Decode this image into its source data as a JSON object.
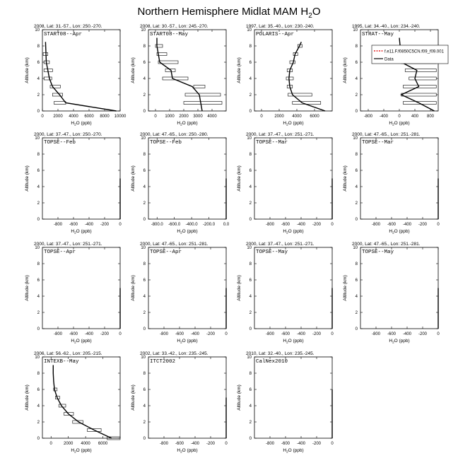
{
  "page": {
    "title_main": "Northern Hemisphere Midlat MAM H",
    "title_sub": "2",
    "title_end": "O"
  },
  "axis_text": {
    "ylabel": "Altitude (km)",
    "xlabel_main": "H",
    "xlabel_sub": "2",
    "xlabel_end": "O (ppb)"
  },
  "chart_data": [
    {
      "type": "line",
      "header": "2008, Lat: 31.-57., Lon: 250.-270.",
      "campaign": "START08--Apr",
      "xlim": [
        0,
        10000
      ],
      "ylim": [
        0,
        10
      ],
      "xticks": [
        "0",
        "2000",
        "4000",
        "6000",
        "8000",
        "10000"
      ],
      "yticks": [
        "0",
        "2",
        "4",
        "6",
        "8",
        "10"
      ],
      "profile": {
        "x": [
          9500,
          3000,
          2200,
          1300,
          900,
          500,
          400
        ],
        "y": [
          0,
          1,
          2,
          3,
          4,
          6,
          8.5
        ]
      },
      "boxes": [
        {
          "y": 1,
          "x0": 1500,
          "x1": 3000
        },
        {
          "y": 2,
          "x0": 1300,
          "x1": 2600
        },
        {
          "y": 3,
          "x0": 1000,
          "x1": 2300
        },
        {
          "y": 4,
          "x0": 200,
          "x1": 1200
        },
        {
          "y": 5,
          "x0": 200,
          "x1": 1300
        },
        {
          "y": 6,
          "x0": 200,
          "x1": 900
        },
        {
          "y": 7,
          "x0": 100,
          "x1": 700
        }
      ]
    },
    {
      "type": "line",
      "header": "2008, Lat: 30.-57., Lon: 245.-270.",
      "campaign": "START08--May",
      "xlim": [
        -500,
        5000
      ],
      "ylim": [
        0,
        10
      ],
      "xticks": [
        "0",
        "1000",
        "2000",
        "3000",
        "4000"
      ],
      "yticks": [
        "0",
        "2",
        "4",
        "6",
        "8",
        "10"
      ],
      "profile": {
        "x": [
          3300,
          3200,
          3100,
          2600,
          1200,
          1100,
          300,
          100,
          100
        ],
        "y": [
          0,
          1,
          2,
          3,
          4,
          5,
          6,
          8,
          9
        ]
      },
      "boxes": [
        {
          "y": 1,
          "x0": 2000,
          "x1": 4700
        },
        {
          "y": 2,
          "x0": 2100,
          "x1": 4600
        },
        {
          "y": 3,
          "x0": 2700,
          "x1": 3500
        },
        {
          "y": 4,
          "x0": 500,
          "x1": 2300
        },
        {
          "y": 5,
          "x0": 700,
          "x1": 1400
        },
        {
          "y": 6,
          "x0": 200,
          "x1": 1600
        },
        {
          "y": 7,
          "x0": 100,
          "x1": 800
        },
        {
          "y": 8,
          "x0": 0,
          "x1": 500
        }
      ]
    },
    {
      "type": "line",
      "header": "1997, Lat: 35.-40., Lon: 230.-240.",
      "campaign": "POLARIS--Apr",
      "xlim": [
        -800,
        8000
      ],
      "ylim": [
        0,
        10
      ],
      "xticks": [
        "0",
        "2000",
        "4000",
        "6000"
      ],
      "yticks": [
        "0",
        "2",
        "4",
        "6",
        "8",
        "10"
      ],
      "profile": {
        "x": [
          7200,
          4600,
          3500,
          3200,
          3100,
          3200,
          3600,
          3800,
          4300,
          4500
        ],
        "y": [
          0,
          1,
          2,
          3,
          4,
          5,
          6,
          7,
          8,
          8.5
        ]
      },
      "boxes": [
        {
          "y": 1,
          "x0": 3500,
          "x1": 6700
        },
        {
          "y": 2,
          "x0": 3000,
          "x1": 5700
        },
        {
          "y": 3,
          "x0": 2900,
          "x1": 3500
        },
        {
          "y": 4,
          "x0": 2800,
          "x1": 3600
        },
        {
          "y": 5,
          "x0": 2900,
          "x1": 3500
        },
        {
          "y": 6,
          "x0": 3200,
          "x1": 3800
        },
        {
          "y": 7,
          "x0": 3600,
          "x1": 4100
        },
        {
          "y": 8,
          "x0": 4100,
          "x1": 4600
        }
      ]
    },
    {
      "type": "line",
      "header": "1995, Lat: 34.-40., Lon: 234.-240.",
      "campaign": "STRAT--May",
      "xlim": [
        -1000,
        1000
      ],
      "ylim": [
        0,
        10
      ],
      "xticks": [
        "-800",
        "-400",
        "0",
        "400",
        "800"
      ],
      "yticks": [
        "0",
        "2",
        "4",
        "6",
        "8",
        "10"
      ],
      "profile": {
        "x": [
          900,
          500,
          50,
          500,
          400,
          450,
          50,
          20,
          0
        ],
        "y": [
          0,
          1,
          2,
          3,
          4,
          5,
          6,
          8,
          9
        ]
      },
      "boxes": [
        {
          "y": 1,
          "x0": 100,
          "x1": 950
        },
        {
          "y": 2,
          "x0": 50,
          "x1": 950
        },
        {
          "y": 3,
          "x0": 100,
          "x1": 950
        },
        {
          "y": 4,
          "x0": 250,
          "x1": 950
        },
        {
          "y": 5,
          "x0": 150,
          "x1": 950
        },
        {
          "y": 6,
          "x0": 50,
          "x1": 950
        }
      ],
      "legend": [
        {
          "label": "f.e11.F.f0850C5CN.f09_f09.001",
          "color": "#dd0000",
          "dashed": true
        },
        {
          "label": "Data",
          "color": "#000000",
          "dashed": false
        }
      ]
    },
    {
      "type": "line",
      "header": "2000, Lat: 37.-47., Lon: 250.-270.",
      "campaign": "TOPSE--Feb",
      "xlim": [
        -1000,
        0
      ],
      "ylim": [
        0,
        10
      ],
      "xticks": [
        "-800",
        "-600",
        "-400",
        "-200",
        "0"
      ],
      "yticks": [
        "0",
        "2",
        "4",
        "6",
        "8",
        "10"
      ],
      "profile": {
        "x": [
          0,
          0
        ],
        "y": [
          0,
          5
        ]
      },
      "boxes": []
    },
    {
      "type": "line",
      "header": "2000, Lat: 47.-65., Lon: 250.-280.",
      "campaign": "TOPSE--Feb",
      "xlim": [
        -900,
        0
      ],
      "ylim": [
        0,
        10
      ],
      "xticks": [
        "-800.0",
        "-600.0",
        "-400.0",
        "-200.0",
        "0.0"
      ],
      "yticks": [
        "0",
        "2",
        "4",
        "6",
        "8",
        "10"
      ],
      "profile": {
        "x": [
          0,
          0
        ],
        "y": [
          0,
          5
        ]
      },
      "boxes": []
    },
    {
      "type": "line",
      "header": "2000, Lat: 37.-47., Lon: 251.-271.",
      "campaign": "TOPSE--Mar",
      "xlim": [
        -1000,
        0
      ],
      "ylim": [
        0,
        10
      ],
      "xticks": [
        "-800",
        "-600",
        "-400",
        "-200",
        "0"
      ],
      "yticks": [
        "0",
        "2",
        "4",
        "6",
        "8",
        "10"
      ],
      "profile": {
        "x": [
          0,
          0
        ],
        "y": [
          0,
          5
        ]
      },
      "boxes": []
    },
    {
      "type": "line",
      "header": "2000, Lat: 47.-65., Lon: 251.-281.",
      "campaign": "TOPSE--Mar",
      "xlim": [
        -1000,
        0
      ],
      "ylim": [
        0,
        10
      ],
      "xticks": [
        "-800",
        "-600",
        "-400",
        "-200",
        "0"
      ],
      "yticks": [
        "0",
        "2",
        "4",
        "6",
        "8",
        "10"
      ],
      "profile": {
        "x": [
          0,
          0
        ],
        "y": [
          0,
          5
        ]
      },
      "boxes": []
    },
    {
      "type": "line",
      "header": "2000, Lat: 37.-47., Lon: 251.-271.",
      "campaign": "TOPSE--Apr",
      "xlim": [
        -1000,
        0
      ],
      "ylim": [
        0,
        10
      ],
      "xticks": [
        "-800",
        "-600",
        "-400",
        "-200",
        "0"
      ],
      "yticks": [
        "0",
        "2",
        "4",
        "6",
        "8",
        "10"
      ],
      "profile": {
        "x": [
          0,
          0
        ],
        "y": [
          0,
          5
        ]
      },
      "boxes": []
    },
    {
      "type": "line",
      "header": "2000, Lat: 47.-65., Lon: 251.-281.",
      "campaign": "TOPSE--Apr",
      "xlim": [
        -1000,
        0
      ],
      "ylim": [
        0,
        10
      ],
      "xticks": [
        "-800",
        "-600",
        "-400",
        "-200",
        "0"
      ],
      "yticks": [
        "0",
        "2",
        "4",
        "6",
        "8",
        "10"
      ],
      "profile": {
        "x": [
          0,
          0
        ],
        "y": [
          0,
          5
        ]
      },
      "boxes": []
    },
    {
      "type": "line",
      "header": "2000, Lat: 37.-47., Lon: 251.-271.",
      "campaign": "TOPSE--May",
      "xlim": [
        -1000,
        0
      ],
      "ylim": [
        0,
        10
      ],
      "xticks": [
        "-800",
        "-600",
        "-400",
        "-200",
        "0"
      ],
      "yticks": [
        "0",
        "2",
        "4",
        "6",
        "8",
        "10"
      ],
      "profile": {
        "x": [
          0,
          0
        ],
        "y": [
          0,
          5
        ]
      },
      "boxes": []
    },
    {
      "type": "line",
      "header": "2000, Lat: 47.-65., Lon: 251.-281.",
      "campaign": "TOPSE--May",
      "xlim": [
        -1000,
        0
      ],
      "ylim": [
        0,
        10
      ],
      "xticks": [
        "-800",
        "-600",
        "-400",
        "-200",
        "0"
      ],
      "yticks": [
        "0",
        "2",
        "4",
        "6",
        "8",
        "10"
      ],
      "profile": {
        "x": [
          0,
          0
        ],
        "y": [
          0,
          5
        ]
      },
      "boxes": []
    },
    {
      "type": "line",
      "header": "2006, Lat: 56.-62., Lon: 205.-215.",
      "campaign": "INTEXB--May",
      "xlim": [
        -1000,
        8000
      ],
      "ylim": [
        0,
        10
      ],
      "xticks": [
        "0",
        "2000",
        "4000",
        "6000"
      ],
      "yticks": [
        "0",
        "2",
        "4",
        "6",
        "8",
        "10"
      ],
      "profile": {
        "x": [
          7000,
          5000,
          3200,
          2000,
          1200,
          700,
          400,
          300,
          250,
          250
        ],
        "y": [
          0,
          1,
          2,
          3,
          4,
          5,
          6,
          7,
          8,
          9
        ]
      },
      "boxes": [
        {
          "y": 0,
          "x0": 6500,
          "x1": 8000
        },
        {
          "y": 1,
          "x0": 4200,
          "x1": 5800
        },
        {
          "y": 2,
          "x0": 2500,
          "x1": 3700
        },
        {
          "y": 3,
          "x0": 1500,
          "x1": 2600
        },
        {
          "y": 4,
          "x0": 900,
          "x1": 1700
        },
        {
          "y": 5,
          "x0": 500,
          "x1": 1000
        },
        {
          "y": 6,
          "x0": 300,
          "x1": 700
        }
      ]
    },
    {
      "type": "line",
      "header": "2002, Lat: 33.-42., Lon: 235.-245.",
      "campaign": "ITCT2002",
      "xlim": [
        -1000,
        0
      ],
      "ylim": [
        0,
        10
      ],
      "xticks": [
        "-800",
        "-600",
        "-400",
        "-200",
        "0"
      ],
      "yticks": [
        "0",
        "2",
        "4",
        "6",
        "8",
        "10"
      ],
      "profile": {
        "x": [
          0,
          0
        ],
        "y": [
          0,
          5
        ]
      },
      "boxes": []
    },
    {
      "type": "line",
      "header": "2010, Lat: 32.-40., Lon: 235.-245.",
      "campaign": "CalNex2010",
      "xlim": [
        -1000,
        0
      ],
      "ylim": [
        0,
        10
      ],
      "xticks": [
        "-800",
        "-600",
        "-400",
        "-200",
        "0"
      ],
      "yticks": [
        "0",
        "2",
        "4",
        "6",
        "8",
        "10"
      ],
      "profile": {
        "x": [
          0,
          0
        ],
        "y": [
          0,
          6
        ]
      },
      "boxes": []
    }
  ]
}
